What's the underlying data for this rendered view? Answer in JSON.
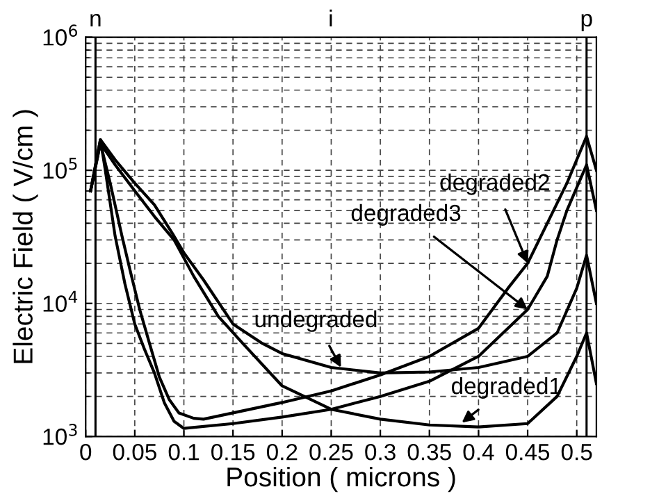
{
  "chart_data": {
    "type": "line",
    "xlabel": "Position ( microns )",
    "ylabel": "Electric Field ( V/cm )",
    "log": "y",
    "grid": true,
    "marker": "none",
    "line_style": "solid",
    "xlim": [
      0,
      0.52
    ],
    "xticks": [
      0,
      0.05,
      0.1,
      0.15,
      0.2,
      0.25,
      0.3,
      0.35,
      0.4,
      0.45,
      0.5
    ],
    "ylim": [
      1000,
      1000000
    ],
    "yticks": [
      {
        "value": 1000,
        "label": "10$^{3}$"
      },
      {
        "value": 10000,
        "label": "10$^{4}$"
      },
      {
        "value": 100000,
        "label": "10$^{5}$"
      },
      {
        "value": 1000000,
        "label": "10$^{6}$"
      }
    ],
    "ref_lines": [
      {
        "axis": "x",
        "value": 0.01,
        "label": "n",
        "color": "#000000",
        "line_style": "solid"
      },
      {
        "axis": "x",
        "value": 0.51,
        "label": "p",
        "color": "#000000",
        "line_style": "solid"
      }
    ],
    "series": [
      {
        "color": "#000000",
        "x": [
          0.005,
          0.015,
          0.03,
          0.05,
          0.07,
          0.09,
          0.1,
          0.12,
          0.15,
          0.18,
          0.2,
          0.25,
          0.3,
          0.35,
          0.4,
          0.45,
          0.48,
          0.5,
          0.51,
          0.52
        ],
        "values": [
          70000,
          170000,
          120000,
          80000,
          55000,
          32000,
          24000,
          15000,
          7000,
          5000,
          4200,
          3300,
          3000,
          3050,
          3300,
          4000,
          6000,
          13000,
          23000,
          10000
        ]
      },
      {
        "color": "#000000",
        "x": [
          0.005,
          0.015,
          0.03,
          0.05,
          0.07,
          0.09,
          0.11,
          0.135,
          0.16,
          0.2,
          0.25,
          0.3,
          0.35,
          0.4,
          0.45,
          0.48,
          0.5,
          0.51,
          0.52
        ],
        "values": [
          70000,
          160000,
          110000,
          70000,
          45000,
          30000,
          16000,
          8000,
          5000,
          2400,
          1600,
          1350,
          1220,
          1180,
          1250,
          2000,
          4000,
          6000,
          2500
        ]
      },
      {
        "color": "#000000",
        "x": [
          0.005,
          0.015,
          0.025,
          0.037,
          0.045,
          0.055,
          0.065,
          0.075,
          0.085,
          0.095,
          0.11,
          0.12,
          0.2,
          0.25,
          0.3,
          0.35,
          0.4,
          0.43,
          0.45,
          0.47,
          0.49,
          0.51,
          0.52
        ],
        "values": [
          70000,
          160000,
          80000,
          32000,
          18000,
          9000,
          5000,
          2800,
          1900,
          1500,
          1370,
          1350,
          1800,
          2200,
          2900,
          4000,
          6500,
          13000,
          20000,
          40000,
          80000,
          180000,
          100000
        ]
      },
      {
        "color": "#000000",
        "x": [
          0.005,
          0.015,
          0.02,
          0.03,
          0.04,
          0.05,
          0.06,
          0.07,
          0.08,
          0.09,
          0.1,
          0.15,
          0.2,
          0.25,
          0.3,
          0.35,
          0.4,
          0.45,
          0.47,
          0.48,
          0.49,
          0.51,
          0.52
        ],
        "values": [
          70000,
          170000,
          100000,
          32000,
          14000,
          7000,
          4500,
          3000,
          1800,
          1300,
          1150,
          1250,
          1400,
          1600,
          2000,
          2600,
          4000,
          9000,
          16000,
          30000,
          50000,
          110000,
          50000
        ]
      }
    ],
    "annotations": [
      "i",
      {
        "text": "undegraded",
        "x": 0.26,
        "y": 3300
      },
      {
        "text": "degraded1",
        "x": 0.383,
        "y": 1270
      },
      {
        "text": "degraded3",
        "x": 0.45,
        "y": 9000
      },
      {
        "text": "degraded2",
        "x": 0.45,
        "y": 20000
      }
    ]
  }
}
